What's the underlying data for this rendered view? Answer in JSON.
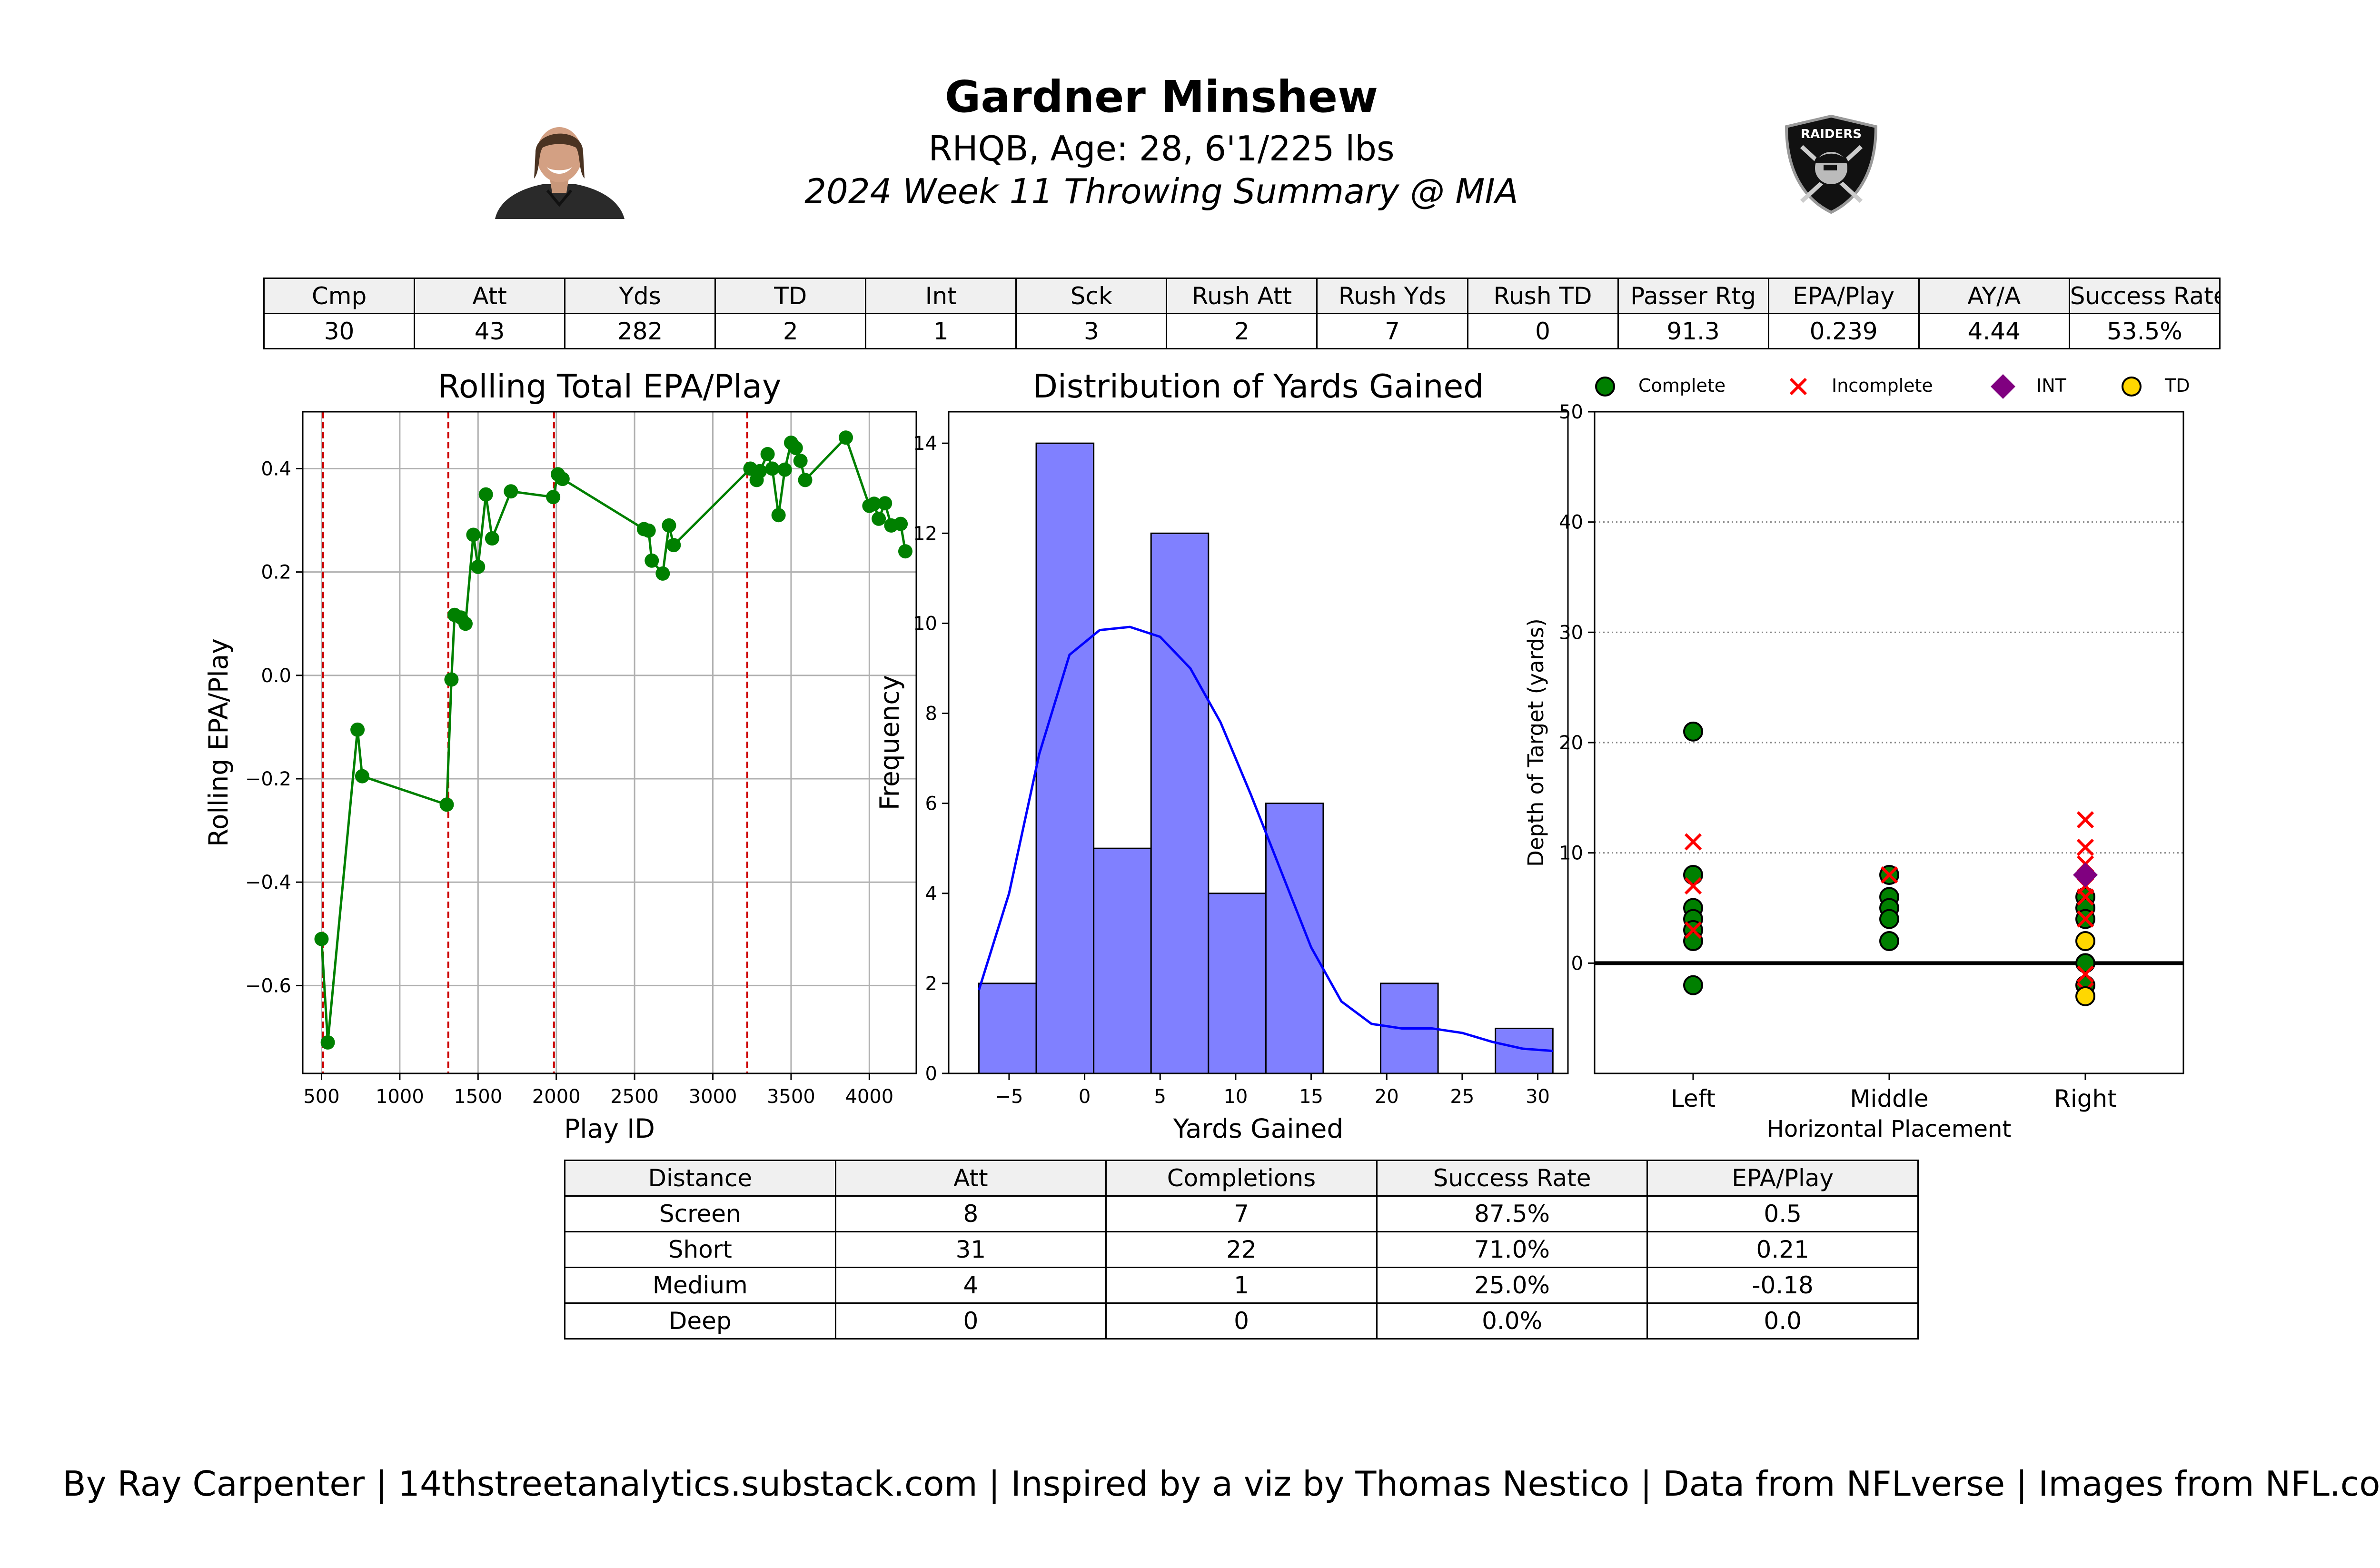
{
  "header": {
    "player_name": "Gardner Minshew",
    "player_info": "RHQB, Age: 28, 6'1/225 lbs",
    "game_summary": "2024 Week 11 Throwing Summary @ MIA",
    "team_logo_text": "RAIDERS"
  },
  "stats_table": {
    "headers": [
      "Cmp",
      "Att",
      "Yds",
      "TD",
      "Int",
      "Sck",
      "Rush Att",
      "Rush Yds",
      "Rush TD",
      "Passer Rtg",
      "EPA/Play",
      "AY/A",
      "Success Rate"
    ],
    "values": [
      "30",
      "43",
      "282",
      "2",
      "1",
      "3",
      "2",
      "7",
      "0",
      "91.3",
      "0.239",
      "4.44",
      "53.5%"
    ]
  },
  "distance_table": {
    "headers": [
      "Distance",
      "Att",
      "Completions",
      "Success Rate",
      "EPA/Play"
    ],
    "rows": [
      [
        "Screen",
        "8",
        "7",
        "87.5%",
        "0.5"
      ],
      [
        "Short",
        "31",
        "22",
        "71.0%",
        "0.21"
      ],
      [
        "Medium",
        "4",
        "1",
        "25.0%",
        "-0.18"
      ],
      [
        "Deep",
        "0",
        "0",
        "0.0%",
        "0.0"
      ]
    ]
  },
  "footer": "By Ray Carpenter | 14thstreetanalytics.substack.com | Inspired by a viz by Thomas Nestico | Data from NFLverse | Images from NFL.com",
  "colors": {
    "line": "#008000",
    "hist": "#8080ff",
    "kde": "#0000ff",
    "complete": "#008000",
    "incomplete": "#ff0000",
    "int": "#800080",
    "td": "#ffd700",
    "quarter_line": "#cc0000"
  },
  "chart_data": [
    {
      "type": "line",
      "title": "Rolling Total EPA/Play",
      "xlabel": "Play ID",
      "ylabel": "Rolling EPA/Play",
      "xlim": [
        380,
        4300
      ],
      "ylim": [
        -0.77,
        0.51
      ],
      "xticks": [
        500,
        1000,
        1500,
        2000,
        2500,
        3000,
        3500,
        4000
      ],
      "yticks": [
        -0.6,
        -0.4,
        -0.2,
        0.0,
        0.2,
        0.4
      ],
      "ytick_labels": [
        "−0.6",
        "−0.4",
        "−0.2",
        "0.0",
        "0.2",
        "0.4"
      ],
      "grid": true,
      "quarter_lines": [
        510,
        1310,
        1985,
        3220
      ],
      "x": [
        500,
        540,
        730,
        760,
        1300,
        1330,
        1350,
        1390,
        1420,
        1470,
        1500,
        1550,
        1590,
        1710,
        1980,
        2010,
        2040,
        2560,
        2590,
        2610,
        2680,
        2720,
        2750,
        3240,
        3280,
        3300,
        3350,
        3380,
        3420,
        3460,
        3500,
        3530,
        3560,
        3590,
        3850,
        4000,
        4030,
        4060,
        4100,
        4140,
        4200,
        4230
      ],
      "y": [
        -0.51,
        -0.71,
        -0.105,
        -0.195,
        -0.25,
        -0.008,
        0.117,
        0.112,
        0.1,
        0.272,
        0.21,
        0.35,
        0.265,
        0.356,
        0.345,
        0.389,
        0.38,
        0.283,
        0.28,
        0.222,
        0.197,
        0.29,
        0.252,
        0.4,
        0.378,
        0.395,
        0.428,
        0.4,
        0.31,
        0.398,
        0.45,
        0.44,
        0.415,
        0.378,
        0.46,
        0.328,
        0.332,
        0.303,
        0.333,
        0.29,
        0.293,
        0.24
      ]
    },
    {
      "type": "bar",
      "title": "Distribution of Yards Gained",
      "xlabel": "Yards Gained",
      "ylabel": "Frequency",
      "xlim": [
        -9,
        32
      ],
      "ylim": [
        0,
        14.7
      ],
      "xticks": [
        -5,
        0,
        5,
        10,
        15,
        20,
        25,
        30
      ],
      "xtick_labels": [
        "−5",
        "0",
        "5",
        "10",
        "15",
        "20",
        "25",
        "30"
      ],
      "yticks": [
        0,
        2,
        4,
        6,
        8,
        10,
        12,
        14
      ],
      "bins": [
        -7,
        -3.2,
        0.6,
        4.4,
        8.2,
        12,
        15.8,
        19.6,
        23.4,
        27.2,
        31
      ],
      "counts": [
        2,
        14,
        5,
        12,
        4,
        6,
        0,
        2,
        0,
        1
      ],
      "kde": [
        [
          -7,
          1.85
        ],
        [
          -5,
          4.0
        ],
        [
          -3,
          7.1
        ],
        [
          -1,
          9.3
        ],
        [
          1,
          9.85
        ],
        [
          3,
          9.92
        ],
        [
          5,
          9.7
        ],
        [
          7,
          9.0
        ],
        [
          9,
          7.8
        ],
        [
          11,
          6.2
        ],
        [
          13,
          4.5
        ],
        [
          15,
          2.8
        ],
        [
          17,
          1.6
        ],
        [
          19,
          1.1
        ],
        [
          21,
          1.0
        ],
        [
          23,
          1.0
        ],
        [
          25,
          0.9
        ],
        [
          27,
          0.7
        ],
        [
          29,
          0.55
        ],
        [
          31,
          0.5
        ]
      ]
    },
    {
      "type": "scatter",
      "xlabel": "Horizontal Placement",
      "ylabel": "Depth of Target (yards)",
      "categories": [
        "Left",
        "Middle",
        "Right"
      ],
      "ylim": [
        -10,
        50
      ],
      "yticks": [
        0,
        10,
        20,
        30,
        40,
        50
      ],
      "grid": "y-dotted",
      "legend": {
        "position": "top",
        "entries": [
          "Complete",
          "Incomplete",
          "INT",
          "TD"
        ]
      },
      "series": [
        {
          "name": "Complete",
          "marker": "circle",
          "color": "#008000",
          "points": [
            [
              "Left",
              21
            ],
            [
              "Left",
              8
            ],
            [
              "Left",
              5
            ],
            [
              "Left",
              4
            ],
            [
              "Left",
              3
            ],
            [
              "Left",
              2
            ],
            [
              "Left",
              -2
            ],
            [
              "Middle",
              8
            ],
            [
              "Middle",
              6
            ],
            [
              "Middle",
              5
            ],
            [
              "Middle",
              4
            ],
            [
              "Middle",
              2
            ],
            [
              "Right",
              6
            ],
            [
              "Right",
              5
            ],
            [
              "Right",
              4
            ],
            [
              "Right",
              0
            ],
            [
              "Right",
              -2
            ]
          ]
        },
        {
          "name": "Incomplete",
          "marker": "x",
          "color": "#ff0000",
          "points": [
            [
              "Left",
              11
            ],
            [
              "Left",
              7
            ],
            [
              "Left",
              3
            ],
            [
              "Middle",
              8
            ],
            [
              "Right",
              13
            ],
            [
              "Right",
              10.5
            ],
            [
              "Right",
              9
            ],
            [
              "Right",
              7
            ],
            [
              "Right",
              6
            ],
            [
              "Right",
              4
            ],
            [
              "Right",
              -1
            ],
            [
              "Right",
              -2.5
            ]
          ]
        },
        {
          "name": "INT",
          "marker": "diamond",
          "color": "#800080",
          "points": [
            [
              "Right",
              8
            ]
          ]
        },
        {
          "name": "TD",
          "marker": "circle",
          "color": "#ffd700",
          "points": [
            [
              "Right",
              2
            ],
            [
              "Right",
              -3
            ]
          ]
        }
      ]
    }
  ]
}
